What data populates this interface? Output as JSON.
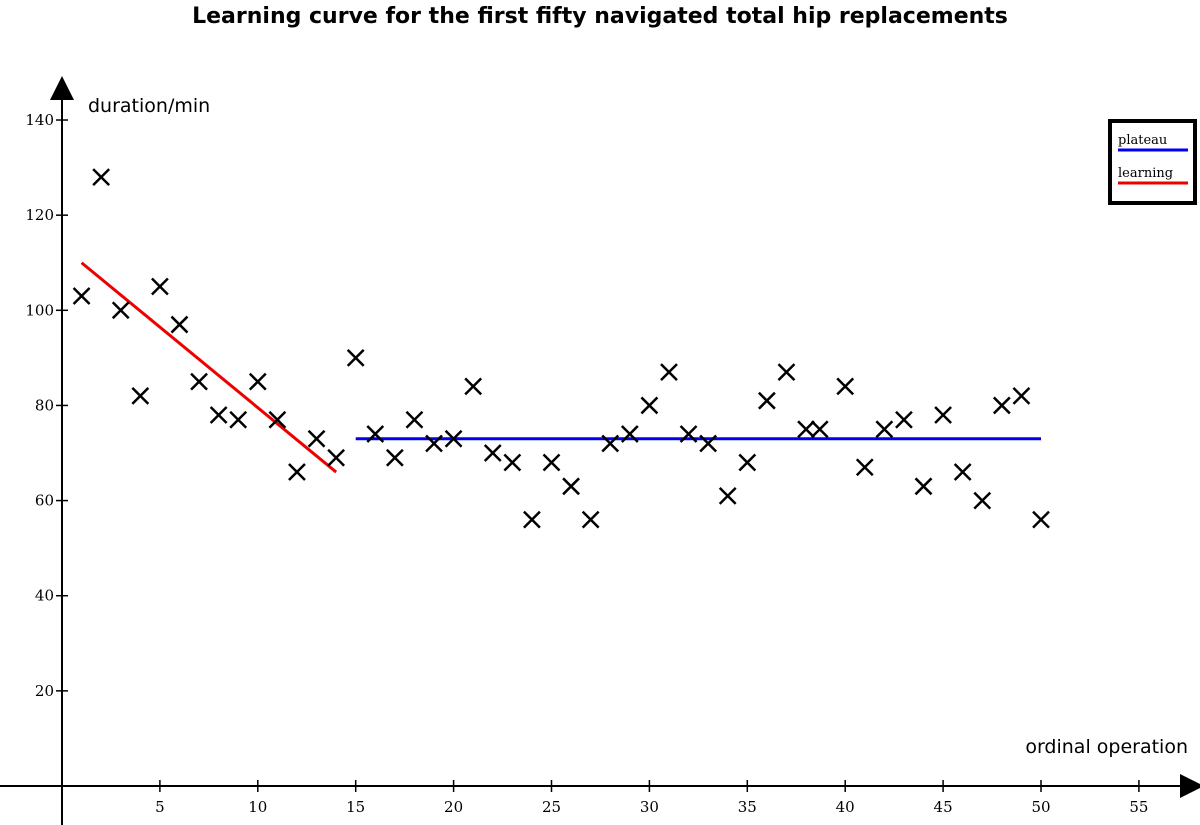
{
  "chart_data": {
    "type": "scatter",
    "title": "Learning curve for the first fifty navigated total hip replacements",
    "ylabel": "duration/min",
    "xlabel": "ordinal operation",
    "xlim": [
      0,
      57
    ],
    "ylim": [
      0,
      148
    ],
    "x_ticks": [
      5,
      10,
      15,
      20,
      25,
      30,
      35,
      40,
      45,
      50,
      55
    ],
    "y_ticks": [
      20,
      40,
      60,
      80,
      100,
      120,
      140
    ],
    "grid": false,
    "legend_position": "top-right",
    "legend": [
      {
        "label": "plateau",
        "color": "#0000ee"
      },
      {
        "label": "learning",
        "color": "#ee0000"
      }
    ],
    "points": {
      "x": [
        1,
        2,
        3,
        4,
        5,
        6,
        7,
        8,
        9,
        10,
        11,
        12,
        13,
        14,
        15,
        16,
        17,
        18,
        19,
        20,
        21,
        22,
        23,
        24,
        25,
        26,
        27,
        28,
        29,
        30,
        31,
        32,
        33,
        34,
        35,
        36,
        37,
        38,
        38.7,
        40,
        41,
        42,
        43,
        44,
        45,
        46,
        47,
        48,
        49,
        50
      ],
      "y": [
        103,
        128,
        100,
        82,
        105,
        97,
        85,
        78,
        77,
        85,
        77,
        66,
        73,
        69,
        90,
        74,
        69,
        77,
        72,
        73,
        84,
        70,
        68,
        56,
        68,
        63,
        56,
        72,
        74,
        80,
        87,
        74,
        72,
        61,
        68,
        81,
        87,
        75,
        75,
        84,
        67,
        75,
        77,
        63,
        78,
        66,
        60,
        80,
        82,
        56
      ]
    },
    "series": [
      {
        "name": "learning",
        "color": "#ee0000",
        "x": [
          1,
          14
        ],
        "y": [
          110,
          66
        ]
      },
      {
        "name": "plateau",
        "color": "#0000ee",
        "x": [
          15,
          50
        ],
        "y": [
          73,
          73
        ]
      }
    ]
  }
}
